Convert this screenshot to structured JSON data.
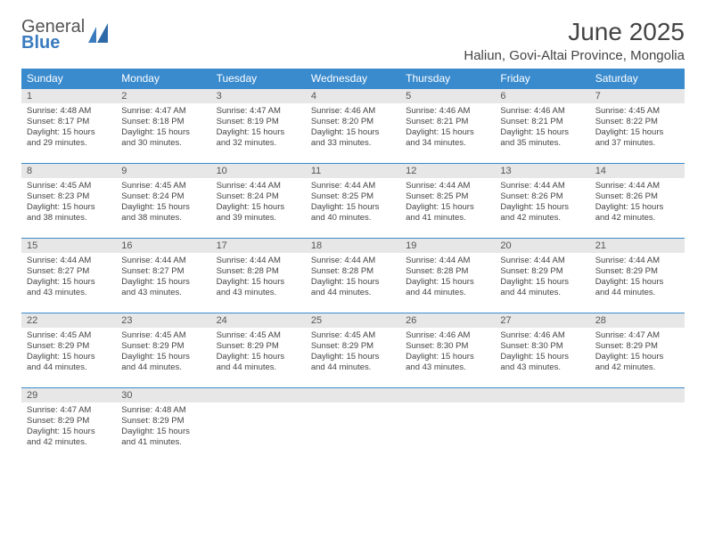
{
  "brand": {
    "word1": "General",
    "word2": "Blue"
  },
  "title": "June 2025",
  "location": "Haliun, Govi-Altai Province, Mongolia",
  "dow": [
    "Sunday",
    "Monday",
    "Tuesday",
    "Wednesday",
    "Thursday",
    "Friday",
    "Saturday"
  ],
  "colors": {
    "accent": "#3a8bce",
    "band": "#e7e7e7",
    "text": "#444444",
    "logoBlue": "#3a7bbf"
  },
  "weeks": [
    [
      {
        "n": "1",
        "sr": "4:48 AM",
        "ss": "8:17 PM",
        "dl": "15 hours and 29 minutes."
      },
      {
        "n": "2",
        "sr": "4:47 AM",
        "ss": "8:18 PM",
        "dl": "15 hours and 30 minutes."
      },
      {
        "n": "3",
        "sr": "4:47 AM",
        "ss": "8:19 PM",
        "dl": "15 hours and 32 minutes."
      },
      {
        "n": "4",
        "sr": "4:46 AM",
        "ss": "8:20 PM",
        "dl": "15 hours and 33 minutes."
      },
      {
        "n": "5",
        "sr": "4:46 AM",
        "ss": "8:21 PM",
        "dl": "15 hours and 34 minutes."
      },
      {
        "n": "6",
        "sr": "4:46 AM",
        "ss": "8:21 PM",
        "dl": "15 hours and 35 minutes."
      },
      {
        "n": "7",
        "sr": "4:45 AM",
        "ss": "8:22 PM",
        "dl": "15 hours and 37 minutes."
      }
    ],
    [
      {
        "n": "8",
        "sr": "4:45 AM",
        "ss": "8:23 PM",
        "dl": "15 hours and 38 minutes."
      },
      {
        "n": "9",
        "sr": "4:45 AM",
        "ss": "8:24 PM",
        "dl": "15 hours and 38 minutes."
      },
      {
        "n": "10",
        "sr": "4:44 AM",
        "ss": "8:24 PM",
        "dl": "15 hours and 39 minutes."
      },
      {
        "n": "11",
        "sr": "4:44 AM",
        "ss": "8:25 PM",
        "dl": "15 hours and 40 minutes."
      },
      {
        "n": "12",
        "sr": "4:44 AM",
        "ss": "8:25 PM",
        "dl": "15 hours and 41 minutes."
      },
      {
        "n": "13",
        "sr": "4:44 AM",
        "ss": "8:26 PM",
        "dl": "15 hours and 42 minutes."
      },
      {
        "n": "14",
        "sr": "4:44 AM",
        "ss": "8:26 PM",
        "dl": "15 hours and 42 minutes."
      }
    ],
    [
      {
        "n": "15",
        "sr": "4:44 AM",
        "ss": "8:27 PM",
        "dl": "15 hours and 43 minutes."
      },
      {
        "n": "16",
        "sr": "4:44 AM",
        "ss": "8:27 PM",
        "dl": "15 hours and 43 minutes."
      },
      {
        "n": "17",
        "sr": "4:44 AM",
        "ss": "8:28 PM",
        "dl": "15 hours and 43 minutes."
      },
      {
        "n": "18",
        "sr": "4:44 AM",
        "ss": "8:28 PM",
        "dl": "15 hours and 44 minutes."
      },
      {
        "n": "19",
        "sr": "4:44 AM",
        "ss": "8:28 PM",
        "dl": "15 hours and 44 minutes."
      },
      {
        "n": "20",
        "sr": "4:44 AM",
        "ss": "8:29 PM",
        "dl": "15 hours and 44 minutes."
      },
      {
        "n": "21",
        "sr": "4:44 AM",
        "ss": "8:29 PM",
        "dl": "15 hours and 44 minutes."
      }
    ],
    [
      {
        "n": "22",
        "sr": "4:45 AM",
        "ss": "8:29 PM",
        "dl": "15 hours and 44 minutes."
      },
      {
        "n": "23",
        "sr": "4:45 AM",
        "ss": "8:29 PM",
        "dl": "15 hours and 44 minutes."
      },
      {
        "n": "24",
        "sr": "4:45 AM",
        "ss": "8:29 PM",
        "dl": "15 hours and 44 minutes."
      },
      {
        "n": "25",
        "sr": "4:45 AM",
        "ss": "8:29 PM",
        "dl": "15 hours and 44 minutes."
      },
      {
        "n": "26",
        "sr": "4:46 AM",
        "ss": "8:30 PM",
        "dl": "15 hours and 43 minutes."
      },
      {
        "n": "27",
        "sr": "4:46 AM",
        "ss": "8:30 PM",
        "dl": "15 hours and 43 minutes."
      },
      {
        "n": "28",
        "sr": "4:47 AM",
        "ss": "8:29 PM",
        "dl": "15 hours and 42 minutes."
      }
    ],
    [
      {
        "n": "29",
        "sr": "4:47 AM",
        "ss": "8:29 PM",
        "dl": "15 hours and 42 minutes."
      },
      {
        "n": "30",
        "sr": "4:48 AM",
        "ss": "8:29 PM",
        "dl": "15 hours and 41 minutes."
      },
      null,
      null,
      null,
      null,
      null
    ]
  ],
  "labels": {
    "sunrise": "Sunrise: ",
    "sunset": "Sunset: ",
    "daylight": "Daylight: "
  }
}
